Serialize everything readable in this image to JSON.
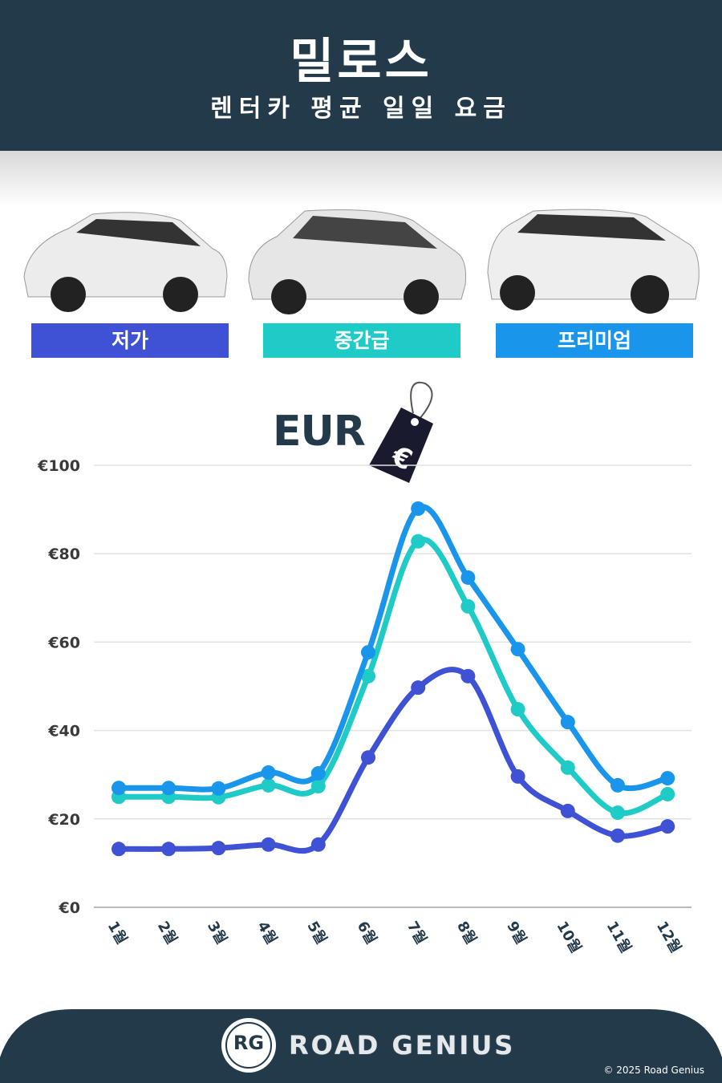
{
  "header": {
    "title": "밀로스",
    "subtitle": "렌터카 평균 일일 요금"
  },
  "categories": [
    {
      "label": "저가",
      "color": "#3f51d4"
    },
    {
      "label": "중간급",
      "color": "#1ecbc6"
    },
    {
      "label": "프리미엄",
      "color": "#1a95ec"
    }
  ],
  "currency_label": "EUR",
  "tag_icon": "euro-price-tag-icon",
  "chart_data": {
    "type": "line",
    "x": [
      "1월",
      "2월",
      "3월",
      "4월",
      "5월",
      "6월",
      "7월",
      "8월",
      "9월",
      "10월",
      "11월",
      "12월"
    ],
    "yticks": [
      "€0",
      "€20",
      "€40",
      "€60",
      "€80",
      "€100"
    ],
    "ylim": [
      0,
      100
    ],
    "grid": true,
    "series": [
      {
        "name": "저가",
        "color": "#3f51d4",
        "values": [
          13.2,
          13.2,
          13.4,
          14.2,
          14.2,
          33.9,
          49.7,
          52.3,
          29.6,
          21.8,
          16.2,
          18.3
        ]
      },
      {
        "name": "중간급",
        "color": "#1ecbc6",
        "values": [
          25.0,
          25.0,
          24.9,
          27.6,
          27.4,
          52.3,
          82.8,
          68.1,
          44.8,
          31.6,
          21.4,
          25.6
        ]
      },
      {
        "name": "프리미엄",
        "color": "#1a95ec",
        "values": [
          27.0,
          27.0,
          26.9,
          30.5,
          30.3,
          57.7,
          90.2,
          74.6,
          58.4,
          41.9,
          27.6,
          29.2
        ]
      }
    ]
  },
  "footer": {
    "logo_text": "RG",
    "brand": "ROAD GENIUS",
    "copyright": "© 2025 Road Genius"
  }
}
